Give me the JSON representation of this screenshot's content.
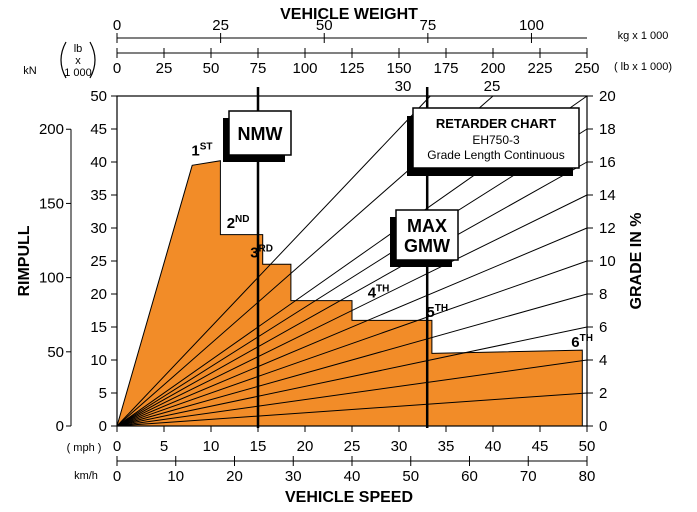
{
  "chart_data": {
    "type": "area",
    "title": "RETARDER CHART",
    "subtitle_model": "EH750-3",
    "subtitle_text": "Grade Length Continuous",
    "top_axis": {
      "title": "VEHICLE WEIGHT",
      "kg_unit": "kg x 1 000",
      "kg_ticks": [
        "0",
        "25",
        "50",
        "75",
        "100"
      ],
      "kg_values": [
        0,
        25,
        50,
        75,
        100
      ],
      "lb_unit": "( lb x 1 000)",
      "lb_ticks": [
        "0",
        "25",
        "50",
        "75",
        "100",
        "125",
        "150",
        "175",
        "200",
        "225",
        "250"
      ],
      "lb_values": [
        0,
        25,
        50,
        75,
        100,
        125,
        150,
        175,
        200,
        225,
        250
      ],
      "range_lb": [
        0,
        250
      ]
    },
    "left_axis": {
      "title": "RIMPULL",
      "unit_kn": "kN",
      "unit_lb_top": "lb",
      "unit_lb_mid": "x",
      "unit_lb_bot": "1 000",
      "lb_ticks": [
        "0",
        "5",
        "10",
        "15",
        "20",
        "25",
        "30",
        "35",
        "40",
        "45",
        "50"
      ],
      "lb_values": [
        0,
        5,
        10,
        15,
        20,
        25,
        30,
        35,
        40,
        45,
        50
      ],
      "kn_ticks": [
        "0",
        "50",
        "100",
        "150",
        "200"
      ],
      "kn_values": [
        0,
        50,
        100,
        150,
        200
      ],
      "range_lb": [
        0,
        50
      ]
    },
    "right_axis": {
      "title": "GRADE IN %",
      "ticks": [
        "0",
        "2",
        "4",
        "6",
        "8",
        "10",
        "12",
        "14",
        "16",
        "18",
        "20"
      ],
      "values": [
        0,
        2,
        4,
        6,
        8,
        10,
        12,
        14,
        16,
        18,
        20
      ]
    },
    "bottom_axis": {
      "title": "VEHICLE SPEED",
      "mph_unit": "( mph )",
      "mph_ticks": [
        "0",
        "5",
        "10",
        "15",
        "20",
        "25",
        "30",
        "35",
        "40",
        "45",
        "50"
      ],
      "mph_values": [
        0,
        5,
        10,
        15,
        20,
        25,
        30,
        35,
        40,
        45,
        50
      ],
      "kmh_unit": "km/h",
      "kmh_ticks": [
        "0",
        "10",
        "20",
        "30",
        "40",
        "50",
        "60",
        "70",
        "80"
      ],
      "kmh_values": [
        0,
        10,
        20,
        30,
        40,
        50,
        60,
        70,
        80
      ],
      "range_mph": [
        0,
        50
      ]
    },
    "weight_lines": [
      {
        "label": "NMW",
        "lines": [
          "NMW"
        ],
        "lb": 75
      },
      {
        "label": "MAX GMW",
        "lines": [
          "MAX",
          "GMW"
        ],
        "lb": 165
      }
    ],
    "grade_line_values": [
      2,
      4,
      6,
      8,
      10,
      12,
      14,
      16,
      18,
      20,
      25,
      30
    ],
    "grade_labels_top": [
      "30",
      "25"
    ],
    "retarder_curve": {
      "color": "#F28C28",
      "points_mph_klb": [
        [
          0,
          0
        ],
        [
          8,
          39.5
        ],
        [
          11,
          40.2
        ],
        [
          11,
          29
        ],
        [
          15.5,
          29
        ],
        [
          15.5,
          24.5
        ],
        [
          18.5,
          24.5
        ],
        [
          18.5,
          19
        ],
        [
          25,
          19
        ],
        [
          25,
          16
        ],
        [
          33.5,
          16
        ],
        [
          33.5,
          11
        ],
        [
          49.5,
          11.5
        ],
        [
          49.5,
          0
        ]
      ]
    },
    "gear_labels": [
      {
        "num": "1",
        "sup": "ST",
        "mph": 9.5,
        "klb": 41
      },
      {
        "num": "2",
        "sup": "ND",
        "mph": 14,
        "klb": 30
      },
      {
        "num": "3",
        "sup": "RD",
        "mph": 17,
        "klb": 25.5
      },
      {
        "num": "4",
        "sup": "TH",
        "mph": 32,
        "klb": 19.5
      },
      {
        "num": "5",
        "sup": "TH",
        "mph": 39.5,
        "klb": 16.5
      },
      {
        "num": "6",
        "sup": "TH",
        "mph": 58,
        "klb": 12
      }
    ]
  }
}
